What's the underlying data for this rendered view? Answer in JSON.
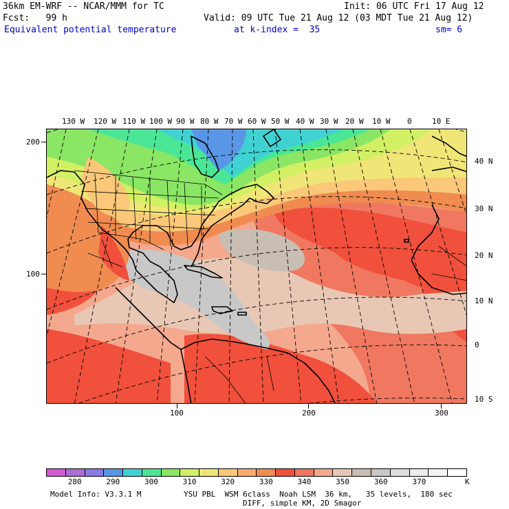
{
  "header": {
    "model": "36km EM-WRF -- NCAR/MMM for TC",
    "init": "Init: 06 UTC Fri 17 Aug 12",
    "fcst": "Fcst:   99 h",
    "valid": "Valid: 09 UTC Tue 21 Aug 12 (03 MDT Tue 21 Aug 12)",
    "field": "Equivalent potential temperature",
    "level": "at k-index =  35",
    "smooth": "sm= 6"
  },
  "lon_labels": [
    "130 W",
    "120 W",
    "110 W",
    "100 W",
    "90 W",
    "80 W",
    "70 W",
    "60 W",
    "50 W",
    "40 W",
    "30 W",
    "20 W",
    "10 W",
    "0",
    "10 E"
  ],
  "lat_labels": [
    "40 N",
    "30 N",
    "20 N",
    "10 N",
    "0",
    "10 S"
  ],
  "y_axis_labels": [
    "200",
    "100"
  ],
  "x_axis_labels": [
    "100",
    "200",
    "300"
  ],
  "colorbar": {
    "labels": [
      "280",
      "290",
      "300",
      "310",
      "320",
      "330",
      "340",
      "350",
      "360",
      "370"
    ],
    "unit": "K",
    "colors": [
      "#d25ad2",
      "#aa6ed2",
      "#8a7ae6",
      "#5a96e6",
      "#40d2d2",
      "#4ae696",
      "#8ae664",
      "#d2f064",
      "#f0e678",
      "#fac878",
      "#f8aa6e",
      "#f08c50",
      "#f0503c",
      "#f07860",
      "#f4a88e",
      "#e8c8b4",
      "#c8beb4",
      "#c8c8c8",
      "#dcdcdc",
      "#ececec",
      "#f5f5f5",
      "#ffffff"
    ]
  },
  "footer": {
    "model_info": "Model Info: V3.3.1 M",
    "physics": "YSU PBL  WSM 6class  Noah LSM  36 km,   35 levels,  180 sec",
    "diff": "DIFF, simple KM, 2D Smagor"
  }
}
